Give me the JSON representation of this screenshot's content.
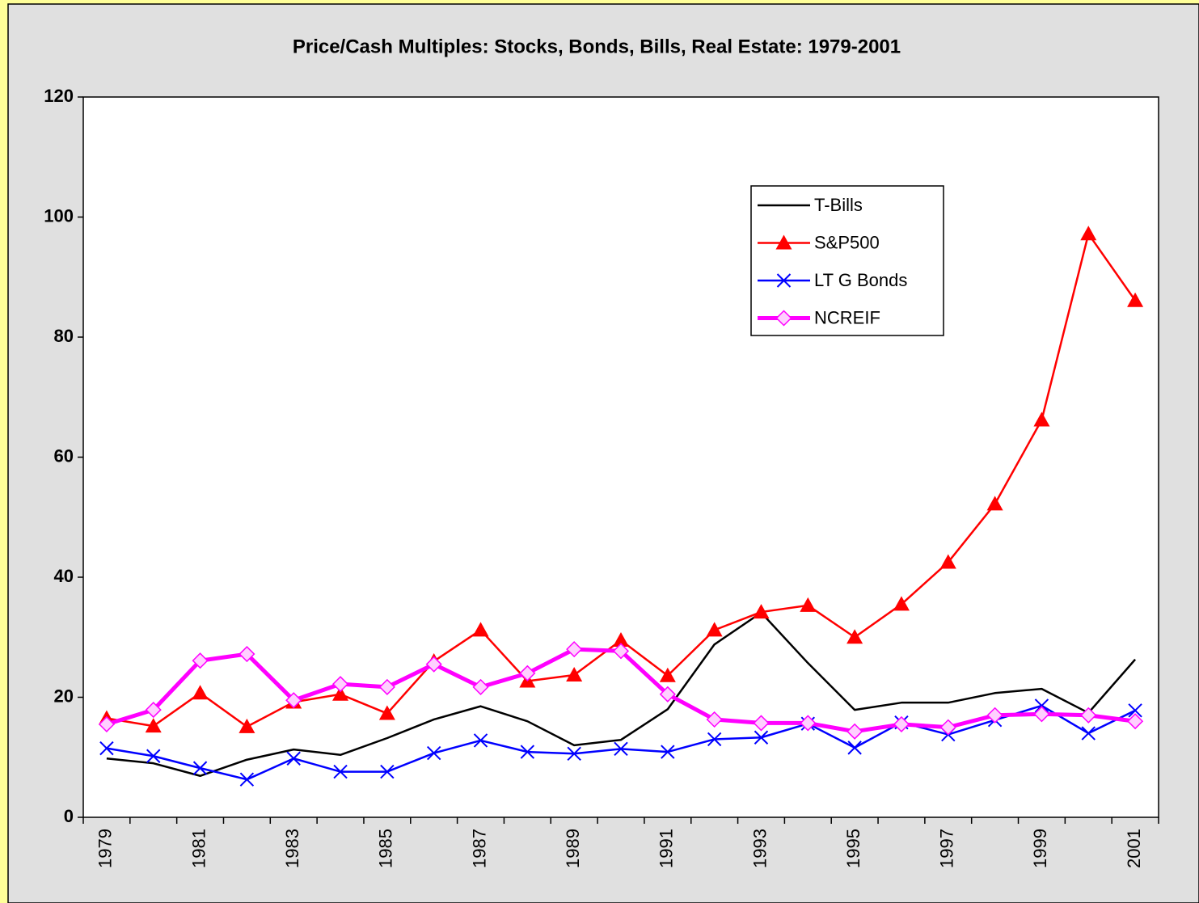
{
  "chart_data": {
    "type": "line",
    "title": "Price/Cash Multiples: Stocks, Bonds, Bills, Real Estate: 1979-2001",
    "categories": [
      "1979",
      null,
      "1981",
      null,
      "1983",
      null,
      "1985",
      null,
      "1987",
      null,
      "1989",
      null,
      "1991",
      null,
      "1993",
      null,
      "1995",
      null,
      "1997",
      null,
      "1999",
      null,
      "2001"
    ],
    "ylim": [
      0,
      120
    ],
    "yticks": [
      0,
      20,
      40,
      60,
      80,
      100,
      120
    ],
    "grid": false,
    "legend": "upper-right",
    "series": [
      {
        "name": "T-Bills",
        "color": "#000000",
        "marker": "none",
        "width": 2.5,
        "values": [
          9.8,
          9.0,
          6.9,
          9.6,
          11.3,
          10.4,
          13.2,
          16.3,
          18.5,
          16.0,
          12.0,
          12.9,
          18.0,
          28.8,
          34.1,
          25.7,
          17.9,
          19.1,
          19.1,
          20.7,
          21.4,
          17.4,
          26.3
        ]
      },
      {
        "name": "S&P500",
        "color": "#ff0000",
        "marker": "triangle",
        "width": 2.5,
        "values": [
          16.5,
          15.2,
          20.7,
          15.1,
          19.2,
          20.5,
          17.3,
          26.0,
          31.2,
          22.7,
          23.7,
          29.5,
          23.6,
          31.2,
          34.2,
          35.3,
          30.0,
          35.5,
          42.5,
          52.2,
          66.2,
          97.2,
          86.1
        ]
      },
      {
        "name": "LT G Bonds",
        "color": "#0000ff",
        "marker": "x",
        "width": 2.5,
        "values": [
          11.5,
          10.2,
          8.2,
          6.3,
          9.8,
          7.6,
          7.6,
          10.7,
          12.8,
          10.9,
          10.6,
          11.4,
          10.9,
          13.0,
          13.3,
          15.6,
          11.6,
          15.8,
          13.8,
          16.2,
          18.6,
          14.0,
          17.8
        ]
      },
      {
        "name": "NCREIF",
        "color": "#ff00ff",
        "marker": "diamond",
        "width": 5,
        "values": [
          15.5,
          17.9,
          26.1,
          27.2,
          19.5,
          22.2,
          21.7,
          25.5,
          21.7,
          24.0,
          28.0,
          27.7,
          20.5,
          16.3,
          15.7,
          15.7,
          14.3,
          15.5,
          15.0,
          17.0,
          17.2,
          17.0,
          16.0
        ]
      }
    ]
  }
}
